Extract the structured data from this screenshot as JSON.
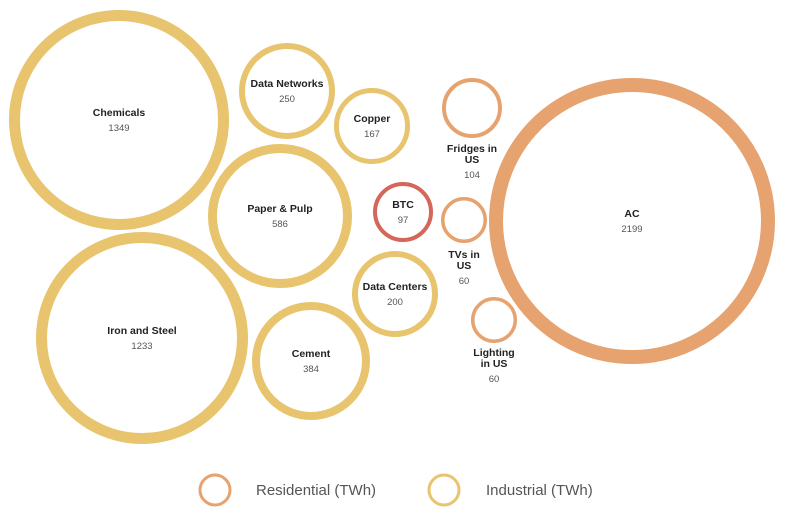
{
  "chart_data": {
    "type": "bubble",
    "unit": "TWh",
    "colors": {
      "residential": "#e6a26f",
      "industrial": "#e7c46d",
      "btc": "#d4665a"
    },
    "legend": [
      {
        "key": "residential",
        "label": "Residential (TWh)"
      },
      {
        "key": "industrial",
        "label": "Industrial (TWh)"
      }
    ],
    "bubbles": [
      {
        "name": [
          "Chemicals"
        ],
        "value": 1349,
        "category": "industrial"
      },
      {
        "name": [
          "Iron and Steel"
        ],
        "value": 1233,
        "category": "industrial"
      },
      {
        "name": [
          "Paper & Pulp"
        ],
        "value": 586,
        "category": "industrial"
      },
      {
        "name": [
          "Cement"
        ],
        "value": 384,
        "category": "industrial"
      },
      {
        "name": [
          "Data Networks"
        ],
        "value": 250,
        "category": "industrial"
      },
      {
        "name": [
          "Data Centers"
        ],
        "value": 200,
        "category": "industrial"
      },
      {
        "name": [
          "Copper"
        ],
        "value": 167,
        "category": "industrial"
      },
      {
        "name": [
          "BTC"
        ],
        "value": 97,
        "category": "btc"
      },
      {
        "name": [
          "Fridges in",
          "US"
        ],
        "value": 104,
        "category": "residential"
      },
      {
        "name": [
          "TVs in",
          "US"
        ],
        "value": 60,
        "category": "residential"
      },
      {
        "name": [
          "Lighting",
          "in US"
        ],
        "value": 60,
        "category": "residential"
      },
      {
        "name": [
          "AC"
        ],
        "value": 2199,
        "category": "residential"
      }
    ]
  }
}
